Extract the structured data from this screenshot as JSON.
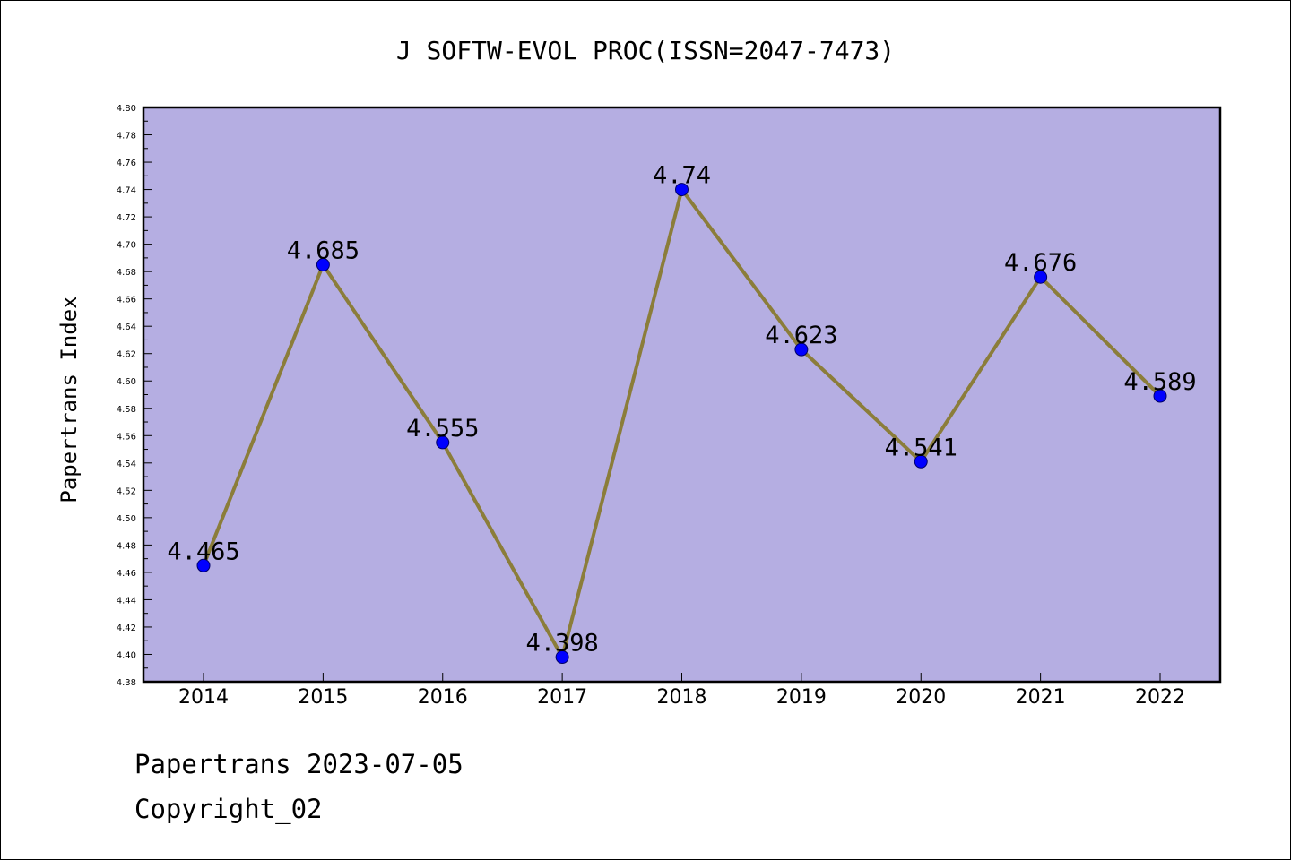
{
  "chart_data": {
    "type": "line",
    "title": "J SOFTW-EVOL PROC(ISSN=2047-7473)",
    "xlabel": "",
    "ylabel": "Papertrans Index",
    "categories": [
      "2014",
      "2015",
      "2016",
      "2017",
      "2018",
      "2019",
      "2020",
      "2021",
      "2022"
    ],
    "series": [
      {
        "values": [
          4.465,
          4.685,
          4.555,
          4.398,
          4.74,
          4.623,
          4.541,
          4.676,
          4.589
        ],
        "labels": [
          "4.465",
          "4.685",
          "4.555",
          "4.398",
          "4.74",
          "4.623",
          "4.541",
          "4.676",
          "4.589"
        ]
      }
    ],
    "ylim": [
      4.38,
      4.8
    ],
    "ytick_step": 0.02,
    "ytick_labels": [
      "4.38",
      "4.40",
      "4.42",
      "4.44",
      "4.46",
      "4.48",
      "4.50",
      "4.52",
      "4.54",
      "4.56",
      "4.58",
      "4.60",
      "4.62",
      "4.64",
      "4.66",
      "4.68",
      "4.70",
      "4.72",
      "4.74",
      "4.76",
      "4.78",
      "4.80"
    ],
    "grid": false,
    "legend": "none",
    "colors": {
      "plot_background": "#b5aee2",
      "line": "#8b7d3a",
      "marker": "#0000ff",
      "marker_edge": "#000066"
    }
  },
  "footer": {
    "date_text": "Papertrans 2023-07-05",
    "copyright_text": "Copyright_02"
  }
}
